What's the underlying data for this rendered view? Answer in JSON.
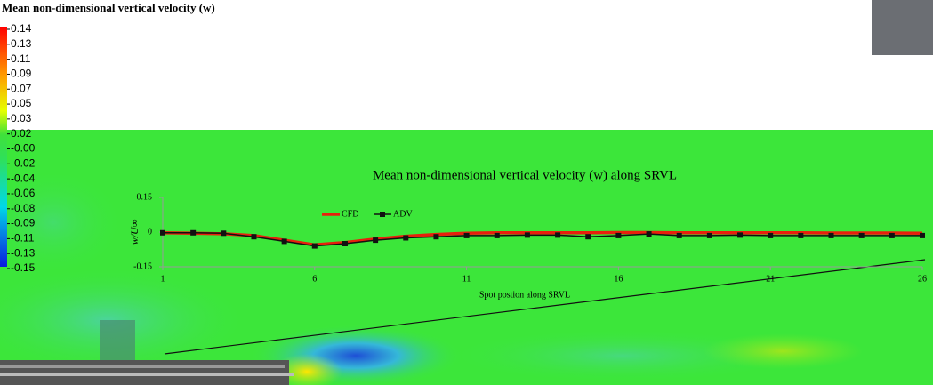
{
  "chart_data": [
    {
      "type": "contour",
      "title": "Mean non-dimensional vertical velocity (w)",
      "colorbar_ticks": [
        0.14,
        0.13,
        0.11,
        0.09,
        0.07,
        0.05,
        0.03,
        0.02,
        {
          "value": 0,
          "label": "-0.00"
        },
        -0.02,
        -0.04,
        -0.06,
        -0.08,
        -0.09,
        -0.11,
        -0.13,
        -0.15
      ]
    },
    {
      "type": "line",
      "title": "Mean non-dimensional vertical velocity (w) along SRVL",
      "x_label": "Spot postion along SRVL",
      "y_label": "w/U∞",
      "x": [
        1,
        2,
        3,
        4,
        5,
        6,
        7,
        8,
        9,
        10,
        11,
        12,
        13,
        14,
        15,
        16,
        17,
        18,
        19,
        20,
        21,
        22,
        23,
        24,
        25,
        26
      ],
      "series": [
        {
          "name": "CFD",
          "color": "#e8200c",
          "marker": false,
          "values": [
            -0.003,
            -0.005,
            -0.007,
            -0.015,
            -0.035,
            -0.055,
            -0.045,
            -0.03,
            -0.018,
            -0.01,
            -0.005,
            -0.003,
            -0.003,
            -0.003,
            -0.003,
            -0.002,
            -0.002,
            -0.003,
            -0.003,
            -0.003,
            -0.003,
            -0.003,
            -0.004,
            -0.004,
            -0.004,
            -0.005
          ]
        },
        {
          "name": "ADV",
          "color": "#111111",
          "marker": true,
          "values": [
            -0.003,
            -0.003,
            -0.005,
            -0.02,
            -0.04,
            -0.06,
            -0.05,
            -0.035,
            -0.025,
            -0.02,
            -0.015,
            -0.015,
            -0.013,
            -0.013,
            -0.02,
            -0.015,
            -0.008,
            -0.015,
            -0.015,
            -0.013,
            -0.015,
            -0.015,
            -0.015,
            -0.015,
            -0.015,
            -0.015
          ]
        }
      ],
      "xlim": [
        1,
        26
      ],
      "xticks": [
        1,
        6,
        11,
        16,
        21,
        26
      ],
      "ylim": [
        -0.15,
        0.15
      ],
      "yticks": [
        0.15,
        0,
        -0.15
      ]
    }
  ]
}
